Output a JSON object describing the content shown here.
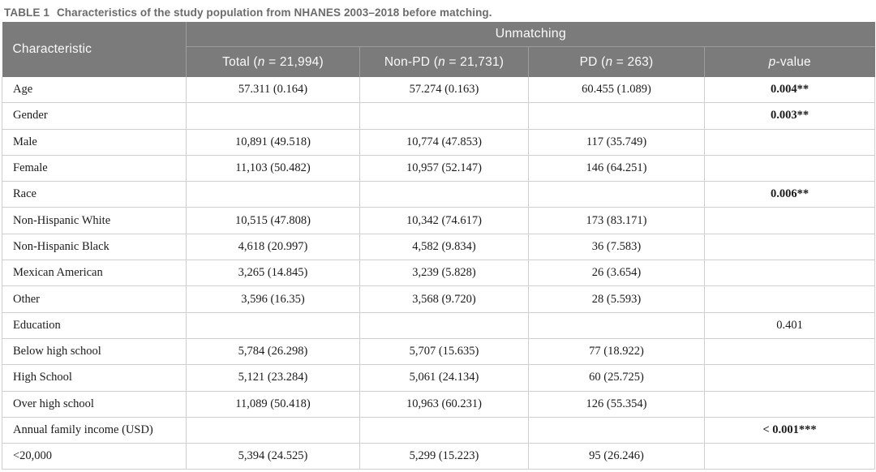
{
  "title": {
    "tag": "TABLE 1",
    "text": "Characteristics of the study population from NHANES 2003–2018 before matching."
  },
  "header": {
    "characteristic": "Characteristic",
    "group": "Unmatching",
    "columns": [
      {
        "pre": "Total (",
        "n": "n",
        "post": " = 21,994)"
      },
      {
        "pre": "Non-PD (",
        "n": "n",
        "post": " = 21,731)"
      },
      {
        "pre": "PD (",
        "n": "n",
        "post": " = 263)"
      },
      {
        "italic": "p",
        "post": "-value"
      }
    ]
  },
  "rows": [
    {
      "label": "Age",
      "total": "57.311 (0.164)",
      "non_pd": "57.274 (0.163)",
      "pd": "60.455 (1.089)",
      "p": "0.004**",
      "p_bold": true
    },
    {
      "label": "Gender",
      "total": "",
      "non_pd": "",
      "pd": "",
      "p": "0.003**",
      "p_bold": true
    },
    {
      "label": "Male",
      "total": "10,891 (49.518)",
      "non_pd": "10,774 (47.853)",
      "pd": "117 (35.749)",
      "p": "",
      "p_bold": false
    },
    {
      "label": "Female",
      "total": "11,103 (50.482)",
      "non_pd": "10,957 (52.147)",
      "pd": "146 (64.251)",
      "p": "",
      "p_bold": false
    },
    {
      "label": "Race",
      "total": "",
      "non_pd": "",
      "pd": "",
      "p": "0.006**",
      "p_bold": true
    },
    {
      "label": "Non-Hispanic White",
      "total": "10,515 (47.808)",
      "non_pd": "10,342 (74.617)",
      "pd": "173 (83.171)",
      "p": "",
      "p_bold": false
    },
    {
      "label": "Non-Hispanic Black",
      "total": "4,618 (20.997)",
      "non_pd": "4,582 (9.834)",
      "pd": "36 (7.583)",
      "p": "",
      "p_bold": false
    },
    {
      "label": "Mexican American",
      "total": "3,265 (14.845)",
      "non_pd": "3,239 (5.828)",
      "pd": "26 (3.654)",
      "p": "",
      "p_bold": false
    },
    {
      "label": "Other",
      "total": "3,596 (16.35)",
      "non_pd": "3,568 (9.720)",
      "pd": "28 (5.593)",
      "p": "",
      "p_bold": false
    },
    {
      "label": "Education",
      "total": "",
      "non_pd": "",
      "pd": "",
      "p": "0.401",
      "p_bold": false
    },
    {
      "label": "Below high school",
      "total": "5,784 (26.298)",
      "non_pd": "5,707 (15.635)",
      "pd": "77 (18.922)",
      "p": "",
      "p_bold": false
    },
    {
      "label": "High School",
      "total": "5,121 (23.284)",
      "non_pd": "5,061 (24.134)",
      "pd": "60 (25.725)",
      "p": "",
      "p_bold": false
    },
    {
      "label": "Over high school",
      "total": "11,089 (50.418)",
      "non_pd": "10,963 (60.231)",
      "pd": "126 (55.354)",
      "p": "",
      "p_bold": false
    },
    {
      "label": "Annual family income (USD)",
      "total": "",
      "non_pd": "",
      "pd": "",
      "p": "< 0.001***",
      "p_bold": true
    },
    {
      "label": "<20,000",
      "total": "5,394 (24.525)",
      "non_pd": "5,299 (15.223)",
      "pd": "95 (26.246)",
      "p": "",
      "p_bold": false
    }
  ],
  "colors": {
    "header_bg": "#7b7b7b",
    "header_text": "#fafafa",
    "header_divider": "#9d9d9d",
    "body_border": "#cfcfcf",
    "title_text": "#6a6b6d",
    "body_text": "#1b1b1b"
  }
}
